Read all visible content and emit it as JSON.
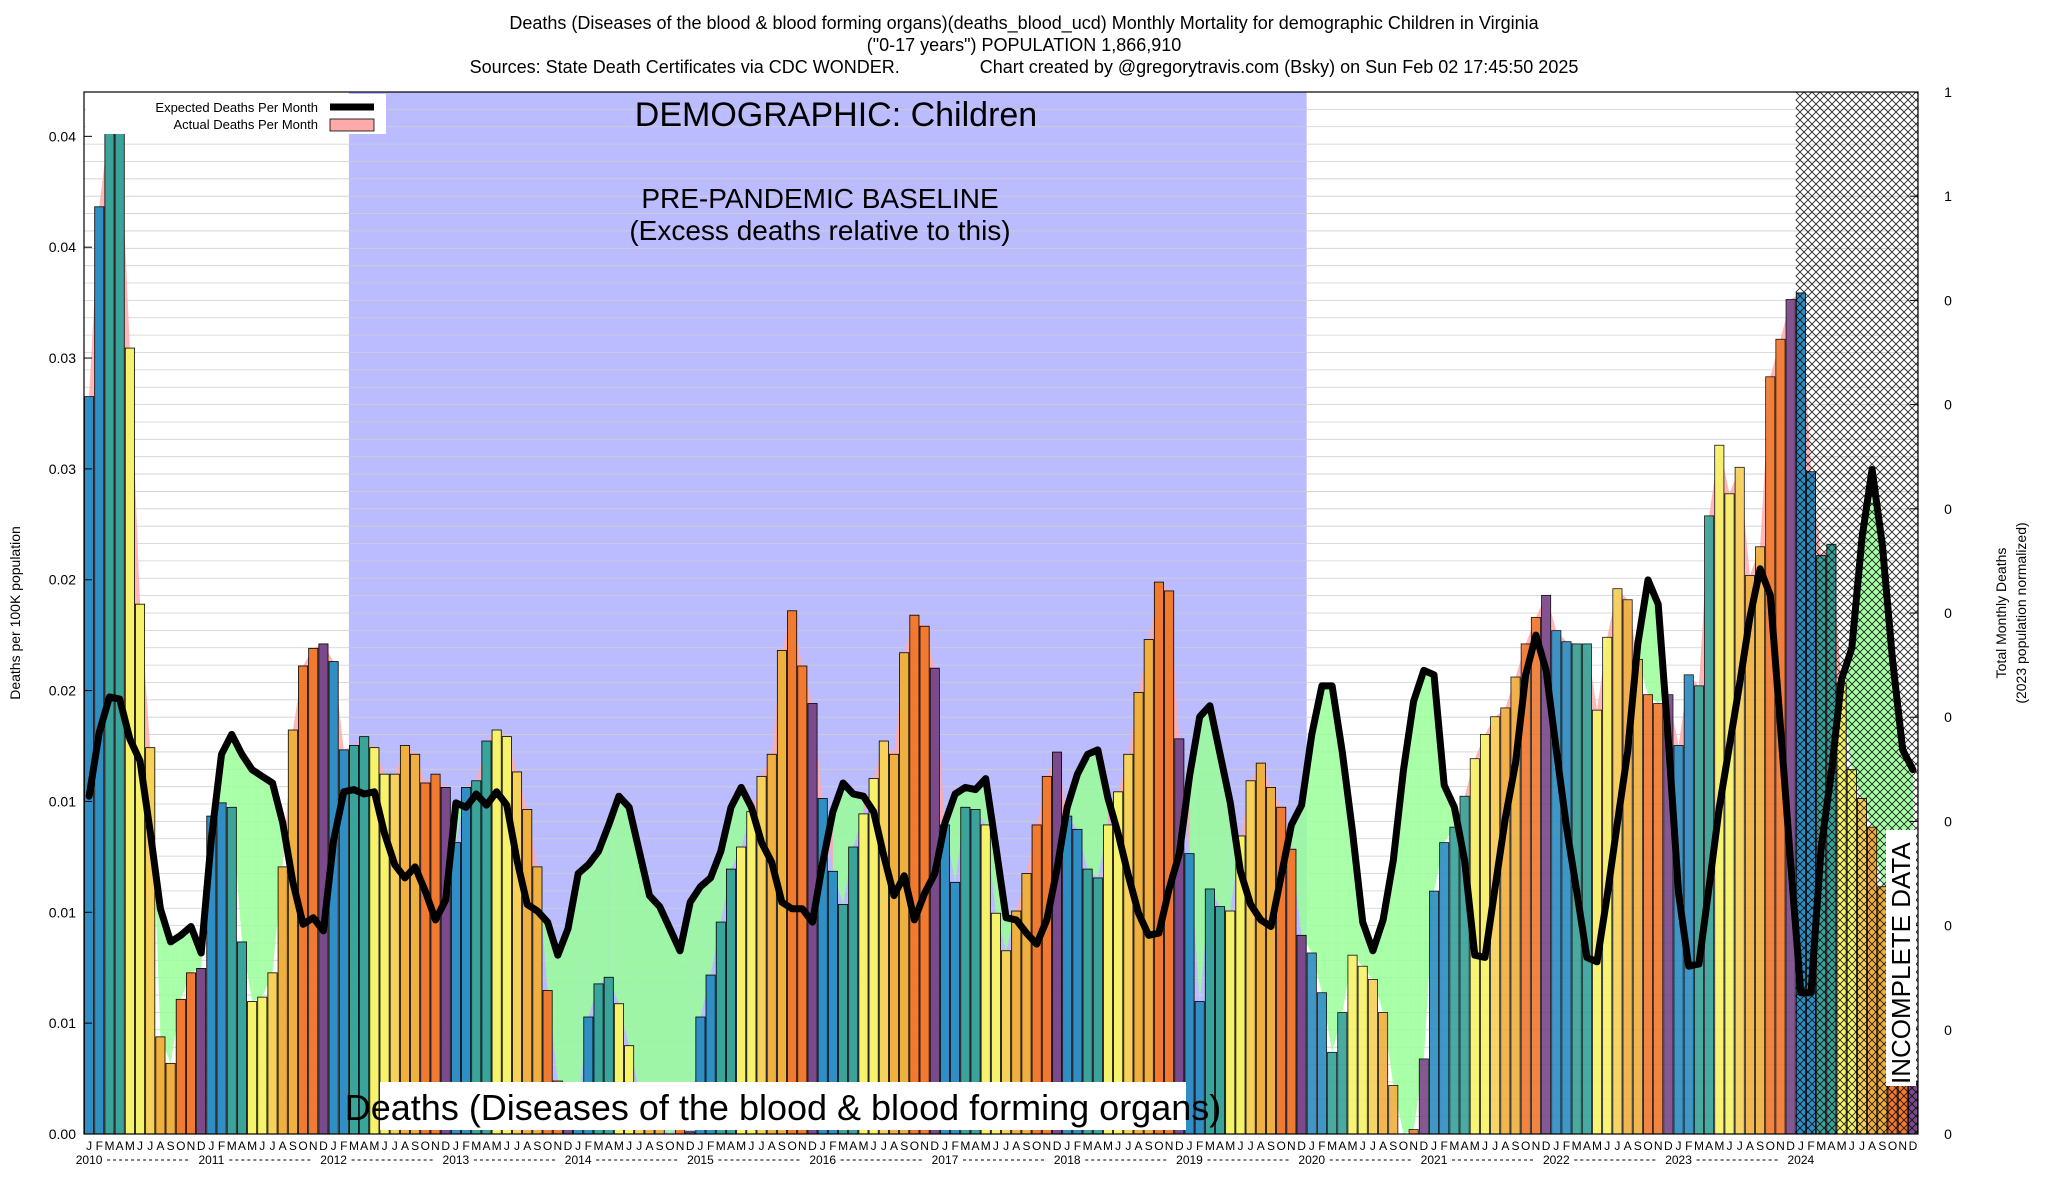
{
  "header": {
    "title_line1": "Deaths (Diseases of the blood & blood forming organs)(deaths_blood_ucd) Monthly Mortality for demographic Children in Virginia",
    "title_line2": "(\"0-17 years\") POPULATION 1,866,910",
    "title_line3": "Sources: State Death Certificates via CDC WONDER.                Chart created by @gregorytravis.com (Bsky) on Sun Feb 02 17:45:50 2025"
  },
  "chart_data": {
    "type": "bar",
    "ylabel_left": "Deaths per 100K population",
    "ylabel_right_line1": "Total Monthly Deaths",
    "ylabel_right_line2": "(2023 population normalized)",
    "y_left_ticks": [
      "0.00",
      "0.01",
      "0.01",
      "0.01",
      "0.02",
      "0.02",
      "0.03",
      "0.03",
      "0.04",
      "0.04"
    ],
    "y_right_ticks": [
      "0",
      "0",
      "0",
      "0",
      "0",
      "0",
      "0",
      "0",
      "0",
      "1",
      "1",
      "1"
    ],
    "ylim": [
      0,
      0.0472
    ],
    "month_letters": [
      "J",
      "F",
      "M",
      "A",
      "M",
      "J",
      "J",
      "A",
      "S",
      "O",
      "N",
      "D"
    ],
    "years": [
      "2010",
      "2011",
      "2012",
      "2013",
      "2014",
      "2015",
      "2016",
      "2017",
      "2018",
      "2019",
      "2020",
      "2021",
      "2022",
      "2023",
      "2024"
    ],
    "legend": {
      "expected_label": "Expected Deaths Per Month",
      "actual_label": "Actual Deaths Per Month"
    },
    "annotations": {
      "demographic": "DEMOGRAPHIC: Children",
      "baseline_line1": "PRE-PANDEMIC BASELINE",
      "baseline_line2": "(Excess deaths relative to this)",
      "cause": "Deaths (Diseases of the blood & blood forming organs)",
      "incomplete": "INCOMPLETE DATA"
    },
    "baseline_range": [
      "2012-03",
      "2019-12"
    ],
    "incomplete_from": "2024-01",
    "colors": {
      "baseline_band": "#bbbbff",
      "excess_fill": "#99ff99",
      "deficit_fill": "#6ed59a",
      "actual_area": "#ffaaaa",
      "expected_line": "#000000",
      "bar_palette": [
        "#2f8fc4",
        "#2f8fc4",
        "#3aa39a",
        "#3aa39a",
        "#f6f36a",
        "#f6f36a",
        "#f6d25a",
        "#f0b040",
        "#f0b040",
        "#f07a30",
        "#f07a30",
        "#7a4a8a"
      ]
    },
    "actual": [
      0.0334,
      0.042,
      0.0458,
      0.0458,
      0.0356,
      0.024,
      0.0175,
      0.0044,
      0.0032,
      0.0061,
      0.0073,
      0.0075,
      0.0144,
      0.015,
      0.0148,
      0.0087,
      0.006,
      0.0062,
      0.0073,
      0.0121,
      0.0183,
      0.0212,
      0.022,
      0.0222,
      0.0214,
      0.0174,
      0.0176,
      0.018,
      0.0175,
      0.0163,
      0.0163,
      0.0176,
      0.0172,
      0.0159,
      0.0163,
      0.0157,
      0.0132,
      0.0157,
      0.016,
      0.0178,
      0.0183,
      0.018,
      0.0164,
      0.0147,
      0.0121,
      0.0065,
      0.0024,
      0.0012,
      0.0014,
      0.0053,
      0.0068,
      0.0071,
      0.0059,
      0.004,
      0.002,
      0.0018,
      0.0003,
      0.0,
      0.0003,
      0.0001,
      0.0053,
      0.0072,
      0.0096,
      0.012,
      0.013,
      0.0146,
      0.0162,
      0.0172,
      0.0219,
      0.0237,
      0.0212,
      0.0195,
      0.0152,
      0.0119,
      0.0104,
      0.013,
      0.0145,
      0.0161,
      0.0178,
      0.0172,
      0.0218,
      0.0235,
      0.023,
      0.0211,
      0.014,
      0.0114,
      0.0148,
      0.0147,
      0.014,
      0.01,
      0.0083,
      0.0101,
      0.0118,
      0.014,
      0.0162,
      0.0173,
      0.0144,
      0.0138,
      0.012,
      0.0116,
      0.014,
      0.0155,
      0.0172,
      0.02,
      0.0224,
      0.025,
      0.0246,
      0.0179,
      0.0127,
      0.006,
      0.0111,
      0.0103,
      0.0101,
      0.0135,
      0.016,
      0.0168,
      0.0157,
      0.0148,
      0.0129,
      0.009,
      0.0082,
      0.0064,
      0.0037,
      0.0055,
      0.0081,
      0.0076,
      0.007,
      0.0055,
      0.0022,
      0.0,
      0.0002,
      0.0034,
      0.011,
      0.0132,
      0.0139,
      0.0153,
      0.017,
      0.0181,
      0.0189,
      0.0193,
      0.0207,
      0.0222,
      0.0234,
      0.0244,
      0.0228,
      0.0223,
      0.0222,
      0.0222,
      0.0192,
      0.0225,
      0.0247,
      0.0242,
      0.0215,
      0.0199,
      0.0195,
      0.0199,
      0.0176,
      0.0208,
      0.0203,
      0.028,
      0.0312,
      0.029,
      0.0302,
      0.0253,
      0.0266,
      0.0343,
      0.036,
      0.0378,
      0.0381,
      0.03,
      0.0262,
      0.0267,
      0.0204,
      0.0165,
      0.0152,
      0.0139,
      0.0112,
      0.0054,
      0.0035,
      0.0024
    ],
    "expected": [
      0.0153,
      0.0182,
      0.0198,
      0.0197,
      0.0179,
      0.0169,
      0.0137,
      0.0102,
      0.0087,
      0.009,
      0.0094,
      0.0082,
      0.0134,
      0.0172,
      0.0181,
      0.0172,
      0.0165,
      0.0162,
      0.0159,
      0.0141,
      0.0114,
      0.0095,
      0.0098,
      0.0092,
      0.0133,
      0.0155,
      0.0156,
      0.0154,
      0.0155,
      0.0136,
      0.0122,
      0.0116,
      0.0121,
      0.011,
      0.0097,
      0.0106,
      0.015,
      0.0148,
      0.0154,
      0.0149,
      0.0155,
      0.0149,
      0.0124,
      0.0104,
      0.0101,
      0.0096,
      0.0081,
      0.0093,
      0.0118,
      0.0122,
      0.0128,
      0.014,
      0.0153,
      0.0148,
      0.0128,
      0.0108,
      0.0103,
      0.0093,
      0.0083,
      0.0105,
      0.0112,
      0.0116,
      0.0128,
      0.0148,
      0.0157,
      0.0148,
      0.0132,
      0.0123,
      0.0105,
      0.0102,
      0.0102,
      0.0096,
      0.0123,
      0.0146,
      0.0159,
      0.0154,
      0.0153,
      0.0146,
      0.0126,
      0.0108,
      0.0117,
      0.0097,
      0.0109,
      0.0118,
      0.0141,
      0.0154,
      0.0157,
      0.0156,
      0.0161,
      0.013,
      0.0098,
      0.0097,
      0.0091,
      0.0086,
      0.0097,
      0.012,
      0.0148,
      0.0163,
      0.0172,
      0.0174,
      0.0152,
      0.0136,
      0.0117,
      0.01,
      0.009,
      0.0091,
      0.0111,
      0.0127,
      0.0162,
      0.0189,
      0.0194,
      0.0172,
      0.015,
      0.0119,
      0.0104,
      0.0097,
      0.0094,
      0.0117,
      0.014,
      0.0149,
      0.0181,
      0.0203,
      0.0203,
      0.0173,
      0.0137,
      0.0096,
      0.0083,
      0.0097,
      0.0124,
      0.0165,
      0.0196,
      0.021,
      0.0208,
      0.0158,
      0.0148,
      0.0124,
      0.0081,
      0.008,
      0.0112,
      0.0143,
      0.0168,
      0.0208,
      0.0226,
      0.021,
      0.0174,
      0.0139,
      0.011,
      0.008,
      0.0078,
      0.0108,
      0.0141,
      0.0173,
      0.0222,
      0.0251,
      0.024,
      0.0178,
      0.0109,
      0.0076,
      0.0077,
      0.0112,
      0.0148,
      0.0176,
      0.0204,
      0.0234,
      0.0256,
      0.0244,
      0.0185,
      0.0123,
      0.0064,
      0.0064,
      0.013,
      0.0164,
      0.0206,
      0.022,
      0.027,
      0.0301,
      0.0267,
      0.0215,
      0.0174,
      0.0165
    ]
  }
}
